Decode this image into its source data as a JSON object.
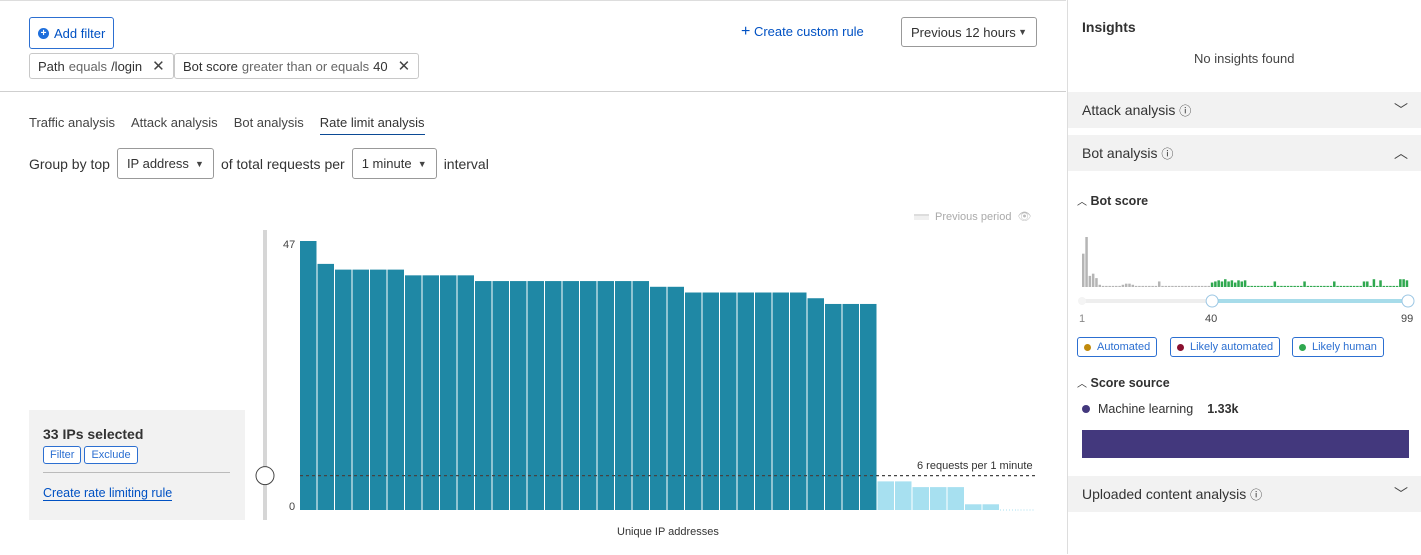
{
  "header": {
    "add_filter": "Add filter",
    "filters": [
      {
        "field": "Path",
        "operator": "equals",
        "value": "/login"
      },
      {
        "field": "Bot score",
        "operator": "greater than or equals",
        "value": "40"
      }
    ],
    "create_custom_rule": "Create custom rule",
    "time_range": "Previous 12 hours"
  },
  "tabs": [
    {
      "label": "Traffic analysis"
    },
    {
      "label": "Attack analysis"
    },
    {
      "label": "Bot analysis"
    },
    {
      "label": "Rate limit analysis",
      "active": true
    }
  ],
  "group_by": {
    "prefix": "Group by top",
    "field": "IP address",
    "middle": "of total requests per",
    "interval": "1 minute",
    "suffix": "interval"
  },
  "chart_data": {
    "type": "bar",
    "xlabel": "Unique IP addresses",
    "ylabel": "",
    "ylim": [
      0,
      47
    ],
    "y_ticks": [
      "0",
      "47"
    ],
    "legend": {
      "label": "Previous period",
      "placement": "top-right"
    },
    "threshold": {
      "value": 6,
      "label": "6 requests per 1 minute"
    },
    "values": [
      47,
      43,
      42,
      42,
      42,
      42,
      41,
      41,
      41,
      41,
      40,
      40,
      40,
      40,
      40,
      40,
      40,
      40,
      40,
      40,
      39,
      39,
      38,
      38,
      38,
      38,
      38,
      38,
      38,
      37,
      36,
      36,
      36,
      5,
      5,
      4,
      4,
      4,
      1,
      1,
      0,
      0
    ],
    "selected_count": 33,
    "colors": {
      "selected": "#1f88a5",
      "unselected": "#a7e0f0"
    }
  },
  "selection": {
    "title": "33 IPs selected",
    "filter": "Filter",
    "exclude": "Exclude",
    "create_rule": "Create rate limiting rule"
  },
  "insights": {
    "title": "Insights",
    "empty": "No insights found",
    "attack_analysis": "Attack analysis",
    "bot_analysis": "Bot analysis",
    "bot_score": {
      "title": "Bot score",
      "min_label": "1",
      "selected_label": "40",
      "max_label": "99",
      "range": [
        40,
        99
      ],
      "histogram": [
        30,
        45,
        10,
        12,
        8,
        2,
        1,
        1,
        1,
        1,
        1,
        1,
        2,
        3,
        3,
        2,
        1,
        1,
        1,
        1,
        1,
        1,
        1,
        5,
        1,
        1,
        1,
        1,
        1,
        1,
        1,
        1,
        1,
        1,
        1,
        1,
        1,
        1,
        1,
        4,
        5,
        6,
        5,
        7,
        5,
        6,
        4,
        6,
        5,
        6,
        1,
        1,
        1,
        1,
        1,
        1,
        1,
        1,
        5,
        1,
        1,
        1,
        1,
        1,
        1,
        1,
        1,
        5,
        1,
        1,
        1,
        1,
        1,
        1,
        1,
        1,
        5,
        1,
        1,
        1,
        1,
        1,
        1,
        1,
        1,
        5,
        5,
        1,
        7,
        1,
        6,
        1,
        1,
        1,
        1,
        1,
        7,
        7,
        6
      ],
      "colors": {
        "below": "#b5b5b5",
        "above": "#2fa84f"
      }
    },
    "legend": [
      {
        "label": "Automated",
        "color": "#c18a0c"
      },
      {
        "label": "Likely automated",
        "color": "#8a0f2e"
      },
      {
        "label": "Likely human",
        "color": "#2fa84f"
      }
    ],
    "score_source": {
      "title": "Score source",
      "item": "Machine learning",
      "value": "1.33k",
      "color": "#43387d"
    },
    "uploaded": "Uploaded content analysis"
  }
}
